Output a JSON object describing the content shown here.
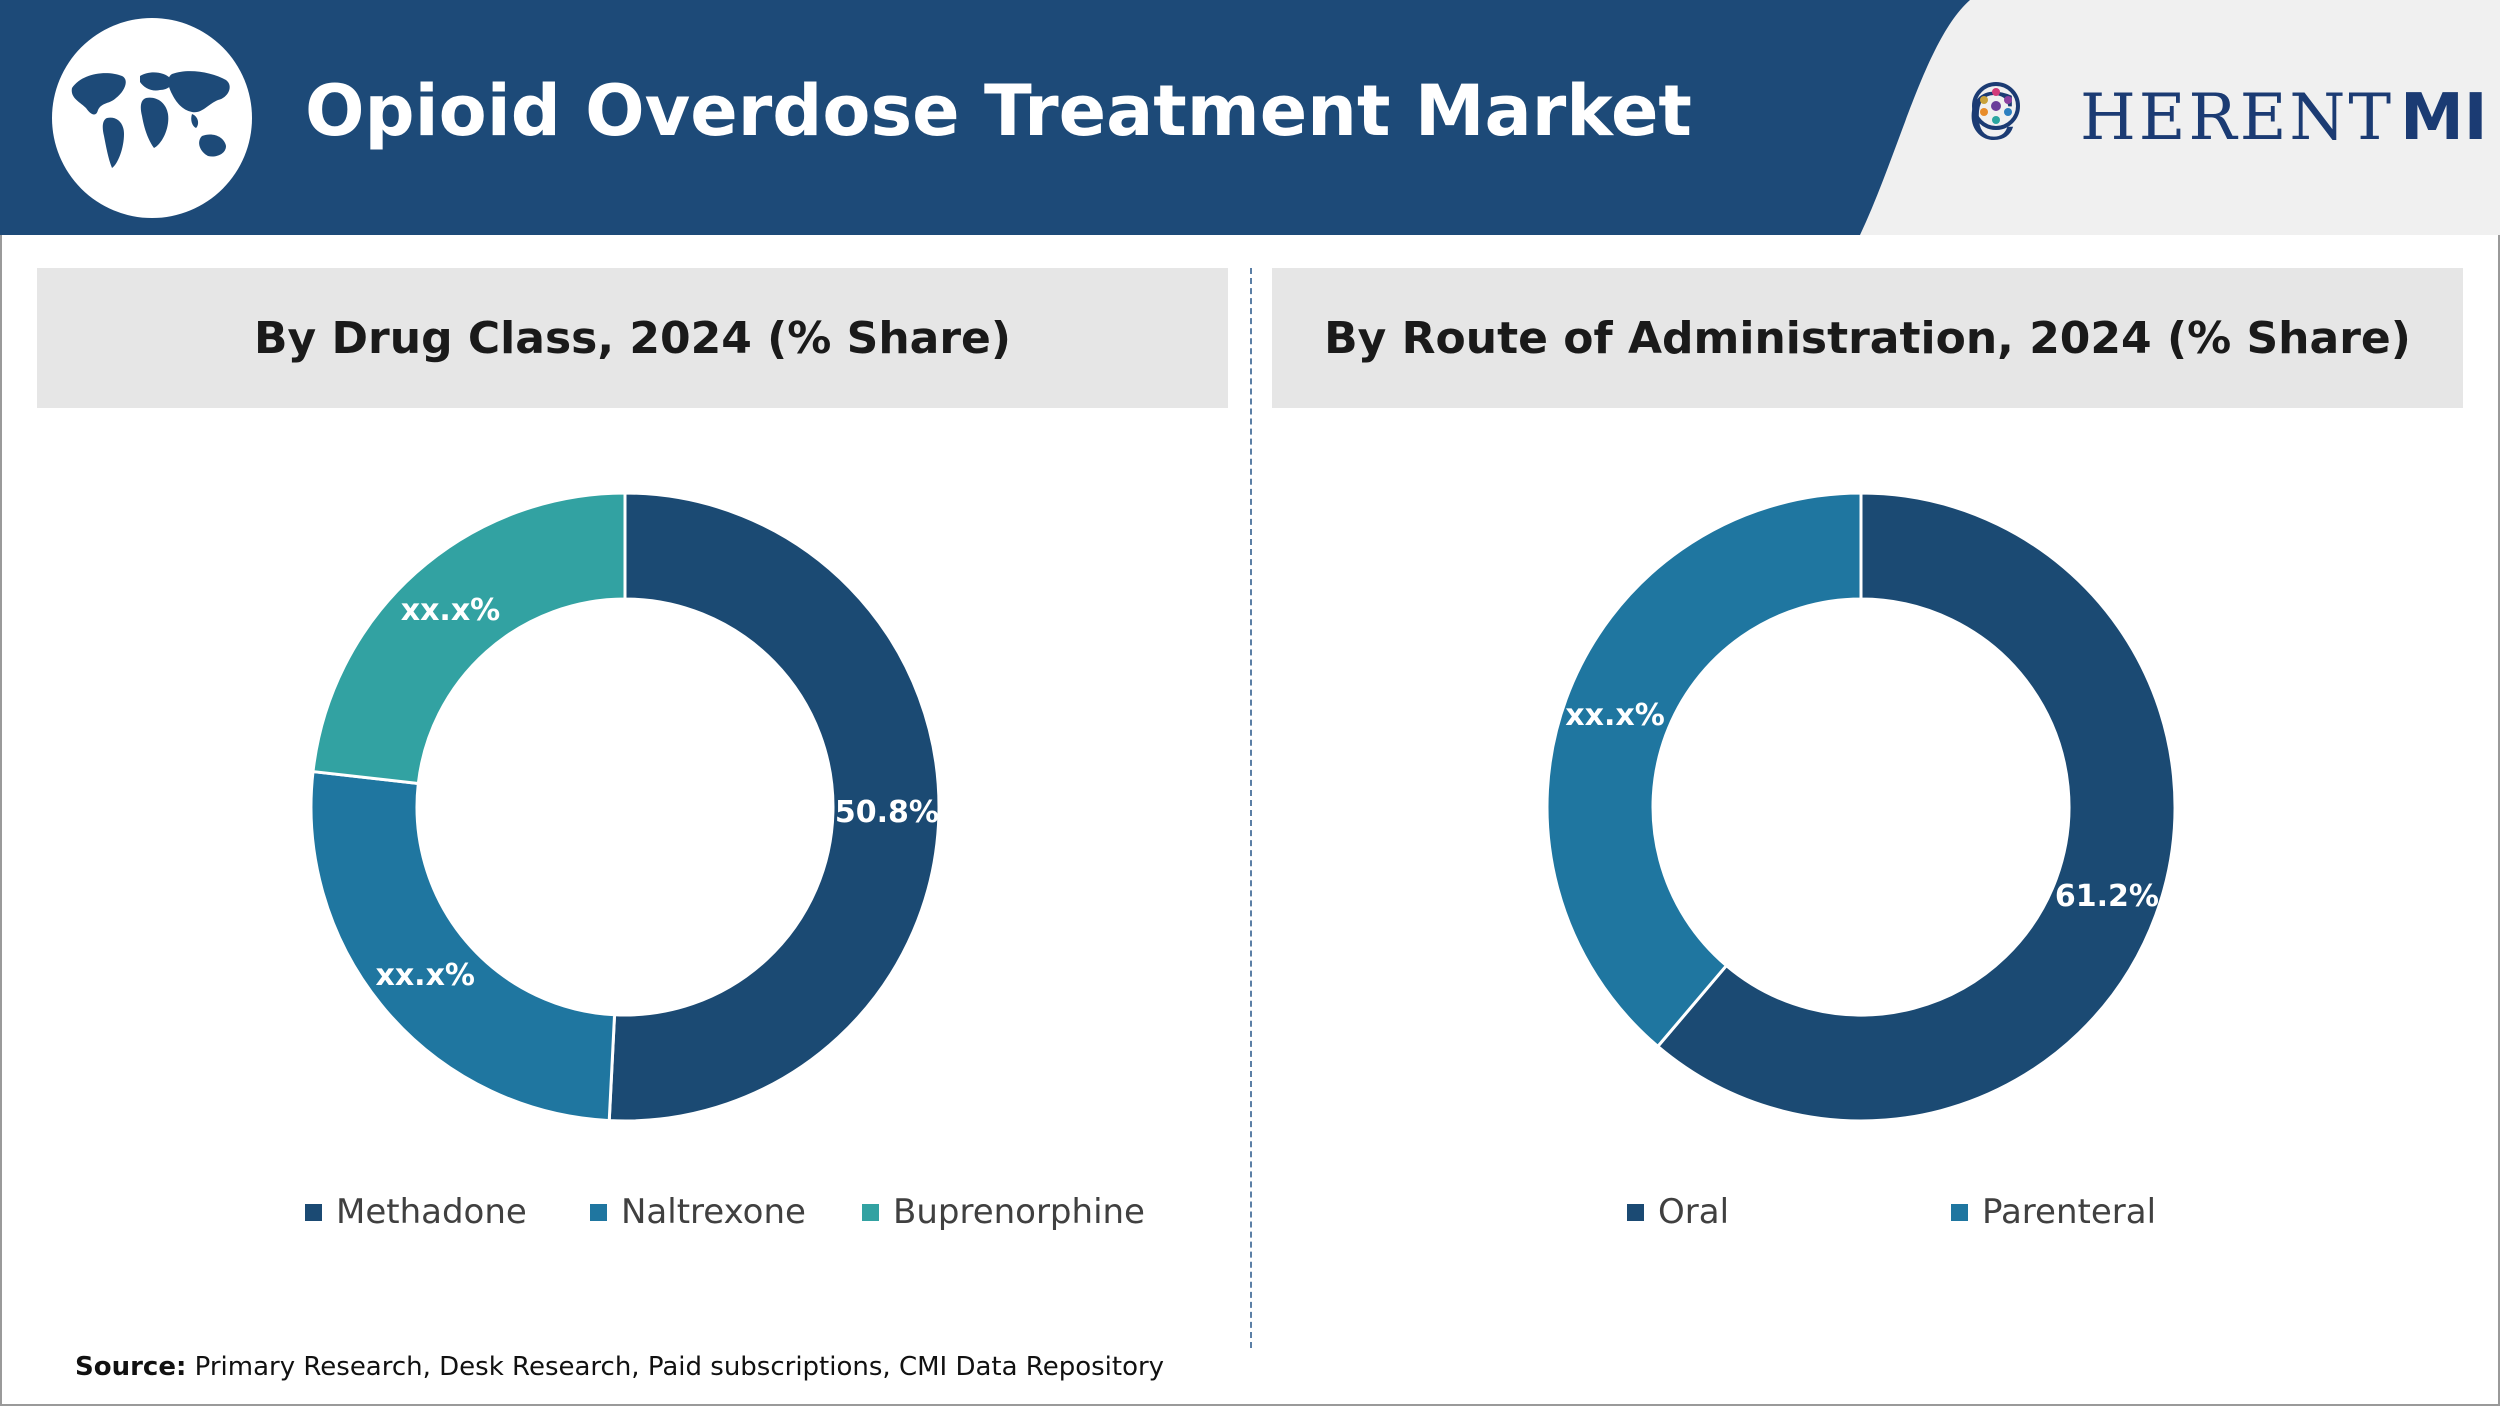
{
  "header": {
    "title": "Opioid Overdose Treatment Market",
    "brand_prefix": "C",
    "brand_suffix": "HERENT",
    "brand_mi": "MI",
    "globe_icon": "world-map-icon"
  },
  "colors": {
    "header_blue": "#1d4a78",
    "methadone": "#1b4a73",
    "naltrexone": "#1f76a0",
    "buprenorphine": "#32a2a2",
    "oral": "#1b4a73",
    "parenteral": "#1f76a0",
    "panel_header_bg": "#e6e6e6"
  },
  "panels": [
    {
      "title": "By Drug Class, 2024 (% Share)"
    },
    {
      "title": "By Route of Administration, 2024 (% Share)"
    }
  ],
  "chart_data": [
    {
      "type": "pie",
      "title": "By Drug Class, 2024 (% Share)",
      "categories": [
        "Methadone",
        "Naltrexone",
        "Buprenorphine"
      ],
      "values": [
        50.8,
        26.0,
        23.2
      ],
      "labels": [
        "50.8%",
        "xx.x%",
        "xx.x%"
      ],
      "colors": [
        "#1b4a73",
        "#1f76a0",
        "#32a2a2"
      ],
      "legend": "bottom"
    },
    {
      "type": "pie",
      "title": "By Route of Administration, 2024 (% Share)",
      "categories": [
        "Oral",
        "Parenteral"
      ],
      "values": [
        61.2,
        38.8
      ],
      "labels": [
        "61.2%",
        "xx.x%"
      ],
      "colors": [
        "#1b4a73",
        "#1f76a0"
      ],
      "legend": "bottom"
    }
  ],
  "footer": {
    "source_label": "Source:",
    "source_text": " Primary Research, Desk Research, Paid subscriptions, CMI Data Repository"
  }
}
